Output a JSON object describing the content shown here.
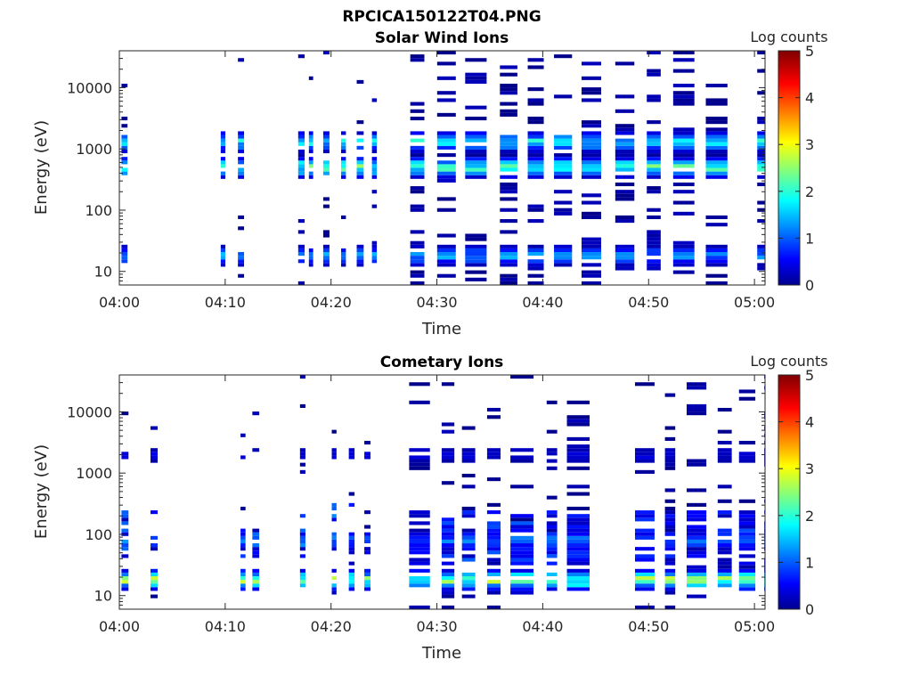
{
  "figure": {
    "title": "RPCICA150122T04.PNG"
  },
  "panels": [
    {
      "title": "Solar Wind Ions",
      "xlabel": "Time",
      "ylabel": "Energy (eV)",
      "x_ticks": [
        "04:00",
        "04:10",
        "04:20",
        "04:30",
        "04:40",
        "04:50",
        "05:00"
      ],
      "y_ticks": [
        "10",
        "100",
        "1000",
        "10000"
      ],
      "colorbar_label": "Log counts",
      "colorbar_ticks": [
        "0",
        "1",
        "2",
        "3",
        "4",
        "5"
      ]
    },
    {
      "title": "Cometary Ions",
      "xlabel": "Time",
      "ylabel": "Energy (eV)",
      "x_ticks": [
        "04:00",
        "04:10",
        "04:20",
        "04:30",
        "04:40",
        "04:50",
        "05:00"
      ],
      "y_ticks": [
        "10",
        "100",
        "1000",
        "10000"
      ],
      "colorbar_label": "Log counts",
      "colorbar_ticks": [
        "0",
        "1",
        "2",
        "3",
        "4",
        "5"
      ]
    }
  ],
  "chart_data": [
    {
      "type": "heatmap",
      "title": "Solar Wind Ions",
      "xlabel": "Time",
      "ylabel": "Energy (eV)",
      "x_range": [
        "04:00",
        "05:01"
      ],
      "y_scale": "log",
      "y_range": [
        6,
        40000
      ],
      "color_range": [
        0,
        5
      ],
      "colormap": "jet",
      "colorbar_label": "Log counts",
      "features": [
        {
          "energy_eV": 1300,
          "log_counts_peak": 2.0
        },
        {
          "energy_eV": 500,
          "log_counts_peak": 2.5
        },
        {
          "energy_eV": 18,
          "log_counts_peak": 1.5
        }
      ]
    },
    {
      "type": "heatmap",
      "title": "Cometary Ions",
      "xlabel": "Time",
      "ylabel": "Energy (eV)",
      "x_range": [
        "04:00",
        "05:01"
      ],
      "y_scale": "log",
      "y_range": [
        6,
        40000
      ],
      "color_range": [
        0,
        5
      ],
      "colormap": "jet",
      "colorbar_label": "Log counts",
      "features": [
        {
          "energy_eV": 18,
          "log_counts_peak": 2.8
        },
        {
          "energy_eV": 80,
          "log_counts_peak": 1.3
        },
        {
          "energy_eV": 2000,
          "log_counts_peak": 0.5
        }
      ]
    }
  ]
}
